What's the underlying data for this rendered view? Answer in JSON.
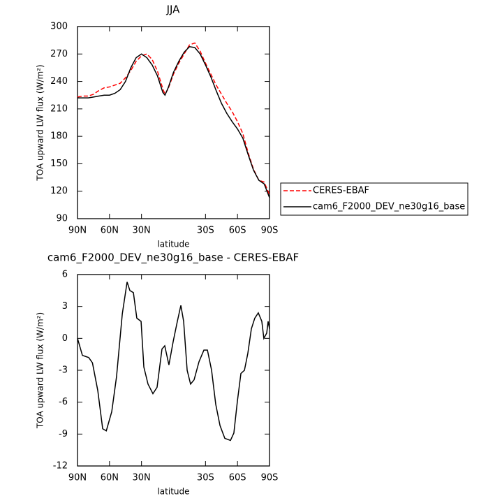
{
  "chart_data": [
    {
      "type": "line",
      "title": "JJA",
      "xlabel": "latitude",
      "ylabel": "TOA upward LW flux (W/m²)",
      "x": [
        90,
        85,
        80,
        75,
        70,
        65,
        60,
        55,
        50,
        45,
        40,
        35,
        30,
        25,
        20,
        15,
        10,
        8,
        5,
        0,
        -5,
        -10,
        -15,
        -20,
        -25,
        -30,
        -35,
        -40,
        -45,
        -50,
        -55,
        -60,
        -65,
        -70,
        -75,
        -80,
        -85,
        -90
      ],
      "series": [
        {
          "name": "CERES-EBAF",
          "color": "#ff0000",
          "linestyle": "dashed",
          "values": [
            223,
            224,
            224,
            226,
            230,
            233,
            234,
            236,
            238,
            244,
            252,
            262,
            268,
            270,
            264,
            251,
            232,
            226,
            232,
            248,
            260,
            270,
            280,
            282,
            273,
            260,
            248,
            236,
            226,
            216,
            207,
            196,
            183,
            162,
            144,
            132,
            130,
            116
          ]
        },
        {
          "name": "cam6_F2000_DEV_ne30g16_base",
          "color": "#000000",
          "linestyle": "solid",
          "values": [
            222,
            222,
            222,
            223,
            224,
            225,
            225,
            227,
            231,
            240,
            255,
            266,
            270,
            266,
            258,
            246,
            228,
            225,
            233,
            250,
            262,
            272,
            278,
            277,
            270,
            258,
            245,
            230,
            216,
            205,
            196,
            188,
            178,
            160,
            143,
            132,
            128,
            113
          ]
        }
      ],
      "xlim": [
        90,
        -90
      ],
      "xticks": [
        {
          "value": 90,
          "label": "90N"
        },
        {
          "value": 60,
          "label": "60N"
        },
        {
          "value": 30,
          "label": "30N"
        },
        {
          "value": -30,
          "label": "30S"
        },
        {
          "value": -60,
          "label": "60S"
        },
        {
          "value": -90,
          "label": "90S"
        }
      ],
      "ylim": [
        90,
        300
      ],
      "yticks": [
        90,
        120,
        150,
        180,
        210,
        240,
        270,
        300
      ],
      "legend": "right"
    },
    {
      "type": "line",
      "title": "cam6_F2000_DEV_ne30g16_base - CERES-EBAF",
      "xlabel": "latitude",
      "ylabel": "TOA upward LW flux (W/m²)",
      "x": [
        90,
        85.4,
        79.5,
        76,
        71,
        66.4,
        63,
        57.9,
        53.4,
        48,
        43.5,
        40.9,
        37.6,
        34.4,
        30.4,
        27.8,
        23.9,
        19.3,
        15.4,
        10.8,
        8.2,
        4.3,
        0.3,
        -3.6,
        -6.9,
        -9.5,
        -12.8,
        -16,
        -19.3,
        -23.9,
        -28.5,
        -31.8,
        -35.7,
        -39.6,
        -43.6,
        -48.1,
        -53.4,
        -56.6,
        -59.9,
        -63.2,
        -66.5,
        -69.7,
        -73,
        -76.2,
        -79.5,
        -82.8,
        -84.7,
        -87.4,
        -88.7,
        -90
      ],
      "values": [
        0,
        -1.6,
        -1.8,
        -2.3,
        -4.9,
        -8.5,
        -8.7,
        -6.9,
        -3.6,
        2.3,
        5.3,
        4.5,
        4.3,
        1.9,
        1.6,
        -2.7,
        -4.3,
        -5.2,
        -4.6,
        -1.0,
        -0.7,
        -2.5,
        -0.3,
        1.6,
        3.1,
        1.6,
        -3.0,
        -4.3,
        -3.9,
        -2.2,
        -1.1,
        -1.1,
        -3.0,
        -6.2,
        -8.2,
        -9.4,
        -9.6,
        -8.9,
        -5.9,
        -3.3,
        -3.0,
        -1.4,
        0.9,
        1.9,
        2.4,
        1.6,
        0,
        0.5,
        1.6,
        0.9
      ],
      "color": "#000000",
      "xlim": [
        90,
        -90
      ],
      "xticks": [
        {
          "value": 90,
          "label": "90N"
        },
        {
          "value": 60,
          "label": "60N"
        },
        {
          "value": 30,
          "label": "30N"
        },
        {
          "value": -30,
          "label": "30S"
        },
        {
          "value": -60,
          "label": "60S"
        },
        {
          "value": -90,
          "label": "90S"
        }
      ],
      "ylim": [
        -12,
        6
      ],
      "yticks": [
        -12,
        -9,
        -6,
        -3,
        0,
        3,
        6
      ]
    }
  ]
}
